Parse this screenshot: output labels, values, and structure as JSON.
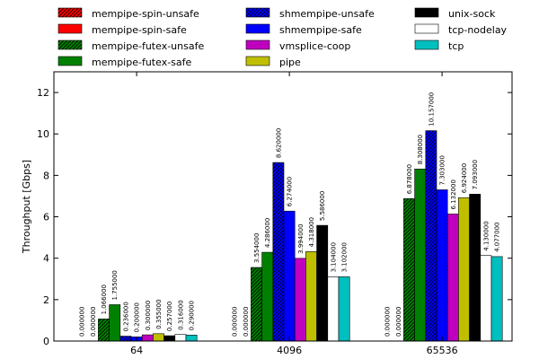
{
  "chart_data": {
    "type": "bar",
    "title": "",
    "xlabel": "",
    "ylabel": "Throughput [Gbps]",
    "ylim": [
      0,
      13
    ],
    "yticks": [
      0,
      2,
      4,
      6,
      8,
      10,
      12
    ],
    "categories": [
      "64",
      "4096",
      "65536"
    ],
    "legend_position": "top",
    "series": [
      {
        "name": "mempipe-spin-unsafe",
        "color": "#ff0000",
        "hatch": true,
        "values": [
          0.0,
          0.0,
          0.0
        ],
        "labels": [
          "0.000000",
          "0.000000",
          "0.000000"
        ]
      },
      {
        "name": "mempipe-spin-safe",
        "color": "#ff0000",
        "hatch": false,
        "values": [
          0.0,
          0.0,
          0.0
        ],
        "labels": [
          "0.000000",
          "0.000000",
          "0.000000"
        ]
      },
      {
        "name": "mempipe-futex-unsafe",
        "color": "#008000",
        "hatch": true,
        "values": [
          1.066,
          3.554,
          6.878
        ],
        "labels": [
          "1.066000",
          "3.554000",
          "6.878000"
        ]
      },
      {
        "name": "mempipe-futex-safe",
        "color": "#008000",
        "hatch": false,
        "values": [
          1.755,
          4.286,
          8.308
        ],
        "labels": [
          "1.755000",
          "4.286000",
          "8.308000"
        ]
      },
      {
        "name": "shmempipe-unsafe",
        "color": "#0000ff",
        "hatch": true,
        "values": [
          0.236,
          8.62,
          10.157
        ],
        "labels": [
          "0.236000",
          "8.620000",
          "10.157000"
        ]
      },
      {
        "name": "shmempipe-safe",
        "color": "#0000ff",
        "hatch": false,
        "values": [
          0.2,
          6.274,
          7.303
        ],
        "labels": [
          "0.200000",
          "6.274000",
          "7.303000"
        ]
      },
      {
        "name": "vmsplice-coop",
        "color": "#bf00bf",
        "hatch": false,
        "values": [
          0.3,
          3.994,
          6.132
        ],
        "labels": [
          "0.300000",
          "3.994000",
          "6.132000"
        ]
      },
      {
        "name": "pipe",
        "color": "#bfbf00",
        "hatch": false,
        "values": [
          0.355,
          4.318,
          6.924
        ],
        "labels": [
          "0.355000",
          "4.318000",
          "6.924000"
        ]
      },
      {
        "name": "unix-sock",
        "color": "#000000",
        "hatch": false,
        "values": [
          0.257,
          5.586,
          7.093
        ],
        "labels": [
          "0.257000",
          "5.586000",
          "7.093000"
        ]
      },
      {
        "name": "tcp-nodelay",
        "color": "#ffffff",
        "hatch": false,
        "values": [
          0.316,
          3.104,
          4.13
        ],
        "labels": [
          "0.316000",
          "3.104000",
          "4.130000"
        ]
      },
      {
        "name": "tcp",
        "color": "#00bfbf",
        "hatch": false,
        "values": [
          0.29,
          3.102,
          4.077
        ],
        "labels": [
          "0.290000",
          "3.102000",
          "4.077000"
        ]
      }
    ]
  }
}
